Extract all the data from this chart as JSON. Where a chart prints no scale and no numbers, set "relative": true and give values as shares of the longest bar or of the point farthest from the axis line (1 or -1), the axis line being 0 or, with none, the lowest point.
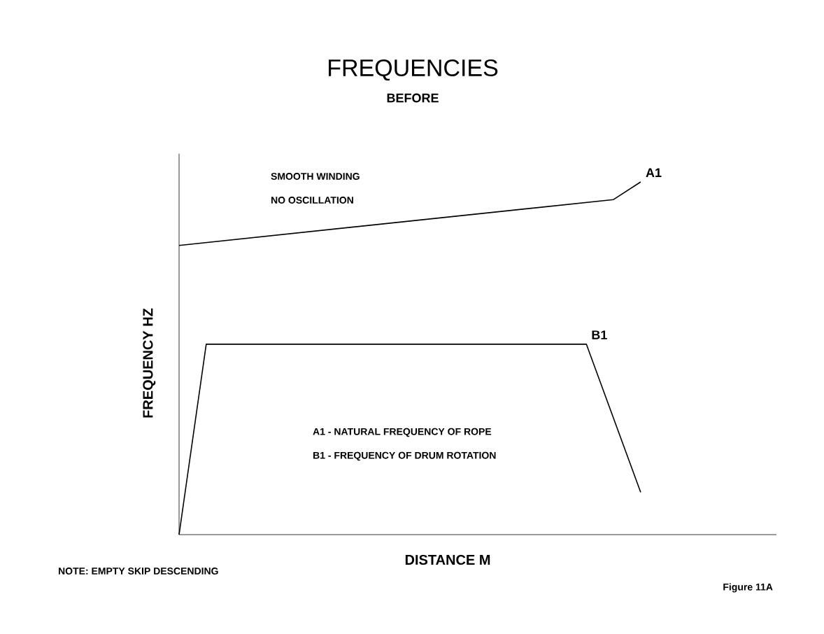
{
  "chart_data": {
    "type": "line",
    "title": "FREQUENCIES",
    "subtitle": "BEFORE",
    "xlabel": "DISTANCE M",
    "ylabel": "FREQUENCY HZ",
    "relative": true,
    "marker": "none",
    "line_style": "solid",
    "categories": [
      null,
      null,
      null,
      null,
      null,
      null,
      null,
      null,
      null,
      null,
      null,
      null,
      null,
      null,
      null,
      null,
      null,
      null,
      null,
      null,
      null,
      null,
      null
    ],
    "series": [
      {
        "name": "A1",
        "color": "#000000",
        "values": [
          0.82,
          null,
          null,
          null,
          null,
          null,
          null,
          null,
          null,
          null,
          null,
          null,
          null,
          null,
          null,
          null,
          0.95,
          1,
          null,
          null,
          null,
          null,
          null
        ]
      },
      {
        "name": "B1",
        "color": "#000000",
        "values": [
          0,
          0.54,
          null,
          null,
          null,
          null,
          null,
          null,
          null,
          null,
          null,
          null,
          null,
          null,
          null,
          0.54,
          null,
          0.12,
          null,
          null,
          null,
          null,
          null
        ]
      }
    ],
    "annotations": [
      "SMOOTH WINDING",
      "NO OSCILLATION",
      "A1 - NATURAL FREQUENCY OF ROPE",
      "B1 - FREQUENCY OF DRUM ROTATION",
      "NOTE: EMPTY SKIP DESCENDING",
      "Figure 11A"
    ]
  }
}
